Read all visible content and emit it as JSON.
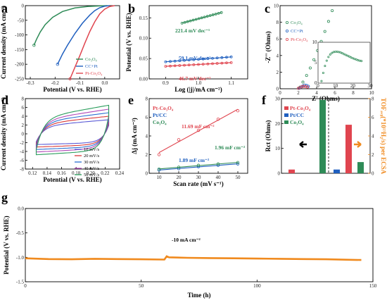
{
  "colors": {
    "co3o4": "#2e8b57",
    "ccpt": "#1f5fbf",
    "ptco3o4": "#e0454f",
    "orange": "#f08a1e",
    "axis": "#000000"
  },
  "panels": {
    "a": "a",
    "b": "b",
    "c": "c",
    "d": "d",
    "e": "e",
    "f": "f",
    "g": "g"
  },
  "chart_data": [
    {
      "id": "a",
      "type": "line",
      "xlabel": "Potential (V vs. RHE)",
      "ylabel": "Current density (mA cm⁻²)",
      "xlim": [
        -0.32,
        0.06
      ],
      "ylim": [
        -250,
        0
      ],
      "xticks": [
        "-0.3",
        "-0.2",
        "-0.1",
        "0.0"
      ],
      "xtick_values": [
        -0.3,
        -0.2,
        -0.1,
        0.0
      ],
      "yticks": [
        "0",
        "-50",
        "-100",
        "-150",
        "-200",
        "-250"
      ],
      "ytick_values": [
        0,
        -50,
        -100,
        -150,
        -200,
        -250
      ],
      "legend": [
        "Co₃O₄",
        "CC+Pt",
        "Pt-Co₃O₄"
      ],
      "series": [
        {
          "name": "Co₃O₄",
          "color": "co3o4",
          "x": [
            -0.285,
            -0.275,
            -0.26,
            -0.24,
            -0.21,
            -0.17,
            -0.12,
            -0.07,
            -0.02,
            0.01
          ],
          "y": [
            -135,
            -115,
            -90,
            -65,
            -40,
            -20,
            -8,
            -3,
            -1,
            0
          ]
        },
        {
          "name": "CC+Pt",
          "color": "ccpt",
          "x": [
            -0.19,
            -0.17,
            -0.15,
            -0.12,
            -0.09,
            -0.06,
            -0.04,
            -0.02,
            0.0,
            0.02
          ],
          "y": [
            -200,
            -165,
            -135,
            -95,
            -60,
            -32,
            -17,
            -7,
            -2,
            0
          ]
        },
        {
          "name": "Pt-Co₃O₄",
          "color": "ptco3o4",
          "x": [
            -0.14,
            -0.12,
            -0.1,
            -0.08,
            -0.06,
            -0.04,
            -0.02,
            0.0,
            0.02,
            0.04
          ],
          "y": [
            -250,
            -210,
            -170,
            -128,
            -88,
            -55,
            -28,
            -12,
            -3,
            0
          ]
        }
      ]
    },
    {
      "id": "b",
      "type": "line",
      "xlabel": "Log (|j|/mA cm⁻²)",
      "ylabel": "Potential (V vs. RHE)",
      "xlim": [
        0.85,
        1.15
      ],
      "ylim": [
        0.0,
        0.18
      ],
      "xticks": [
        "0.9",
        "1.0",
        "1.1"
      ],
      "xtick_values": [
        0.9,
        1.0,
        1.1
      ],
      "yticks": [
        "0.00",
        "0.05",
        "0.10",
        "0.15"
      ],
      "ytick_values": [
        0.0,
        0.05,
        0.1,
        0.15
      ],
      "annotations": [
        "221.4 mV dec⁻¹",
        "59.1 mV dec⁻¹",
        "46.7 mV dec⁻¹"
      ],
      "series": [
        {
          "color": "co3o4",
          "x": [
            0.95,
            1.07
          ],
          "y": [
            0.137,
            0.163
          ]
        },
        {
          "color": "ccpt",
          "x": [
            0.9,
            1.1
          ],
          "y": [
            0.042,
            0.054
          ]
        },
        {
          "color": "ptco3o4",
          "x": [
            0.9,
            1.1
          ],
          "y": [
            0.031,
            0.04
          ]
        }
      ]
    },
    {
      "id": "c",
      "type": "scatter",
      "xlabel": "Z' (Ohms)",
      "ylabel": "-Z'' (Ohms)",
      "xlim": [
        0,
        10
      ],
      "ylim": [
        0,
        10
      ],
      "xticks": [
        "0",
        "2",
        "4",
        "6",
        "8",
        "10"
      ],
      "xtick_values": [
        0,
        2,
        4,
        6,
        8,
        10
      ],
      "yticks": [
        "0",
        "2",
        "4",
        "6",
        "8",
        "10"
      ],
      "ytick_values": [
        0,
        2,
        4,
        6,
        8,
        10
      ],
      "legend": [
        "Co₃O₄",
        "CC+Pt",
        "Pt-Co₃O₄"
      ],
      "series": [
        {
          "name": "Co₃O₄",
          "color": "co3o4",
          "x": [
            2.2,
            2.5,
            2.9,
            3.3,
            3.7,
            4.1,
            4.5,
            4.9,
            5.3,
            5.7
          ],
          "y": [
            0.2,
            0.8,
            1.6,
            2.5,
            3.5,
            4.6,
            5.7,
            6.9,
            8.1,
            9.4
          ]
        },
        {
          "name": "CC+Pt",
          "color": "ccpt",
          "x": [
            2.1,
            2.3,
            2.5,
            2.7,
            2.9,
            3.1
          ],
          "y": [
            0.05,
            0.2,
            0.35,
            0.45,
            0.4,
            0.3
          ]
        },
        {
          "name": "Pt-Co₃O₄",
          "color": "ptco3o4",
          "x": [
            2.0,
            2.2,
            2.4,
            2.6,
            2.8,
            3.0
          ],
          "y": [
            0.05,
            0.15,
            0.25,
            0.3,
            0.25,
            0.2
          ]
        }
      ],
      "inset": {
        "xlim": [
          0,
          30
        ],
        "ylim": [
          0,
          10
        ],
        "xticks": [
          "0",
          "10",
          "20",
          "30"
        ],
        "xtick_values": [
          0,
          10,
          20,
          30
        ],
        "yticks": [
          "0",
          "5",
          "10"
        ],
        "ytick_values": [
          0,
          5,
          10
        ],
        "series_x": [
          2,
          3,
          4,
          5,
          6,
          7,
          8,
          9,
          10,
          11,
          12,
          13,
          14,
          15,
          16,
          17,
          18,
          19,
          20,
          21,
          22,
          23,
          24,
          25
        ],
        "series_y": [
          0.5,
          2.5,
          4.2,
          5.5,
          6.4,
          7.0,
          7.4,
          7.6,
          7.7,
          7.7,
          7.6,
          7.5,
          7.3,
          7.1,
          6.9,
          6.7,
          6.5,
          6.3,
          6.1,
          5.9,
          5.8,
          5.6,
          5.5,
          5.4
        ]
      }
    },
    {
      "id": "d",
      "type": "line",
      "xlabel": "Potential (V vs. RHE)",
      "ylabel": "Current density (mA cm⁻²)",
      "xlim": [
        0.11,
        0.24
      ],
      "ylim": [
        -8,
        8
      ],
      "xticks": [
        "0.12",
        "0.14",
        "0.16",
        "0.18",
        "0.20",
        "0.22",
        "0.24"
      ],
      "xtick_values": [
        0.12,
        0.14,
        0.16,
        0.18,
        0.2,
        0.22,
        0.24
      ],
      "yticks": [
        "8",
        "6",
        "4",
        "2",
        "0",
        "-2",
        "-4",
        "-6",
        "-8"
      ],
      "ytick_values": [
        8,
        6,
        4,
        2,
        0,
        -2,
        -4,
        -6,
        -8
      ],
      "legend": [
        "10 mV/s",
        "20 mV/s",
        "30 mV/s",
        "40 mV/s",
        "50 mV/s"
      ],
      "series": [
        {
          "name": "10 mV/s",
          "color": "#5b5bd6",
          "amplitude": 3.2
        },
        {
          "name": "20 mV/s",
          "color": "#d93a3a",
          "amplitude": 4.0
        },
        {
          "name": "30 mV/s",
          "color": "#2b6fd1",
          "amplitude": 4.8
        },
        {
          "name": "40 mV/s",
          "color": "#b048b8",
          "amplitude": 5.6
        },
        {
          "name": "50 mV/s",
          "color": "#2a9d5c",
          "amplitude": 6.5
        }
      ]
    },
    {
      "id": "e",
      "type": "scatter",
      "xlabel": "Scan rate (mV s⁻¹)",
      "ylabel": "Δj (mA cm⁻²)",
      "xlim": [
        5,
        55
      ],
      "ylim": [
        0,
        8
      ],
      "xticks": [
        "10",
        "20",
        "30",
        "40",
        "50"
      ],
      "xtick_values": [
        10,
        20,
        30,
        40,
        50
      ],
      "yticks": [
        "0",
        "2",
        "4",
        "6",
        "8"
      ],
      "ytick_values": [
        0,
        2,
        4,
        6,
        8
      ],
      "legend": [
        "Pt-Co₃O₄",
        "Pt/CC",
        "Co₃O₄"
      ],
      "annotations": [
        "11.69 mF cm⁻²",
        "1.96 mF cm⁻²",
        "1.89 mF cm⁻²"
      ],
      "series": [
        {
          "name": "Pt-Co₃O₄",
          "color": "ptco3o4",
          "x": [
            10,
            20,
            30,
            40,
            50
          ],
          "y": [
            2.0,
            3.6,
            4.6,
            5.8,
            6.7
          ]
        },
        {
          "name": "Pt/CC",
          "color": "ccpt",
          "x": [
            10,
            20,
            30,
            40,
            50
          ],
          "y": [
            0.35,
            0.5,
            0.7,
            0.85,
            1.0
          ]
        },
        {
          "name": "Co₃O₄",
          "color": "co3o4",
          "x": [
            10,
            20,
            30,
            40,
            50
          ],
          "y": [
            0.45,
            0.65,
            0.85,
            1.0,
            1.15
          ]
        }
      ]
    },
    {
      "id": "f",
      "type": "bar",
      "ylabel": "Rct (Ohms)",
      "ylabel_right": "TOFₐᵥ₉(*10¹³H₂/s) per ECSA",
      "ylim": [
        0,
        30
      ],
      "yticks": [
        "0",
        "10",
        "20",
        "30"
      ],
      "ytick_values": [
        0,
        10,
        20,
        30
      ],
      "yticks_right": [
        "0",
        "2",
        "4",
        "6",
        "8"
      ],
      "legend": [
        "Pt-Co₃O₄",
        "Pt/CC",
        "Co₃O₄"
      ],
      "bars_left": [
        {
          "color": "ptco3o4",
          "value": 1.5
        },
        {
          "color": "ccpt",
          "value": 0
        },
        {
          "color": "co3o4",
          "value": 29.5
        }
      ],
      "bars_right": [
        {
          "color": "ccpt",
          "value": 1.5
        },
        {
          "color": "ptco3o4",
          "value": 19.5
        },
        {
          "color": "co3o4",
          "value": 4.5
        }
      ]
    },
    {
      "id": "g",
      "type": "line",
      "xlabel": "Time (h)",
      "ylabel": "Potential (V vs. RHE)",
      "xlim": [
        0,
        150
      ],
      "ylim": [
        -1.5,
        0
      ],
      "xticks": [
        "0",
        "50",
        "100",
        "150"
      ],
      "xtick_values": [
        0,
        50,
        100,
        150
      ],
      "yticks": [
        "0.0",
        "-0.5",
        "-1.0",
        "-1.5"
      ],
      "ytick_values": [
        0.0,
        -0.5,
        -1.0,
        -1.5
      ],
      "annotation": "-10 mA cm⁻²",
      "series": [
        {
          "color": "orange",
          "x": [
            0,
            10,
            20,
            30,
            40,
            50,
            60,
            61,
            62,
            70,
            80,
            90,
            100,
            110,
            120,
            130,
            140,
            145
          ],
          "y": [
            -1.02,
            -1.035,
            -1.04,
            -1.03,
            -1.035,
            -1.04,
            -1.045,
            -0.98,
            -1.0,
            -1.01,
            -1.015,
            -1.02,
            -1.025,
            -1.03,
            -1.035,
            -1.04,
            -1.05,
            -1.055
          ]
        }
      ]
    }
  ]
}
